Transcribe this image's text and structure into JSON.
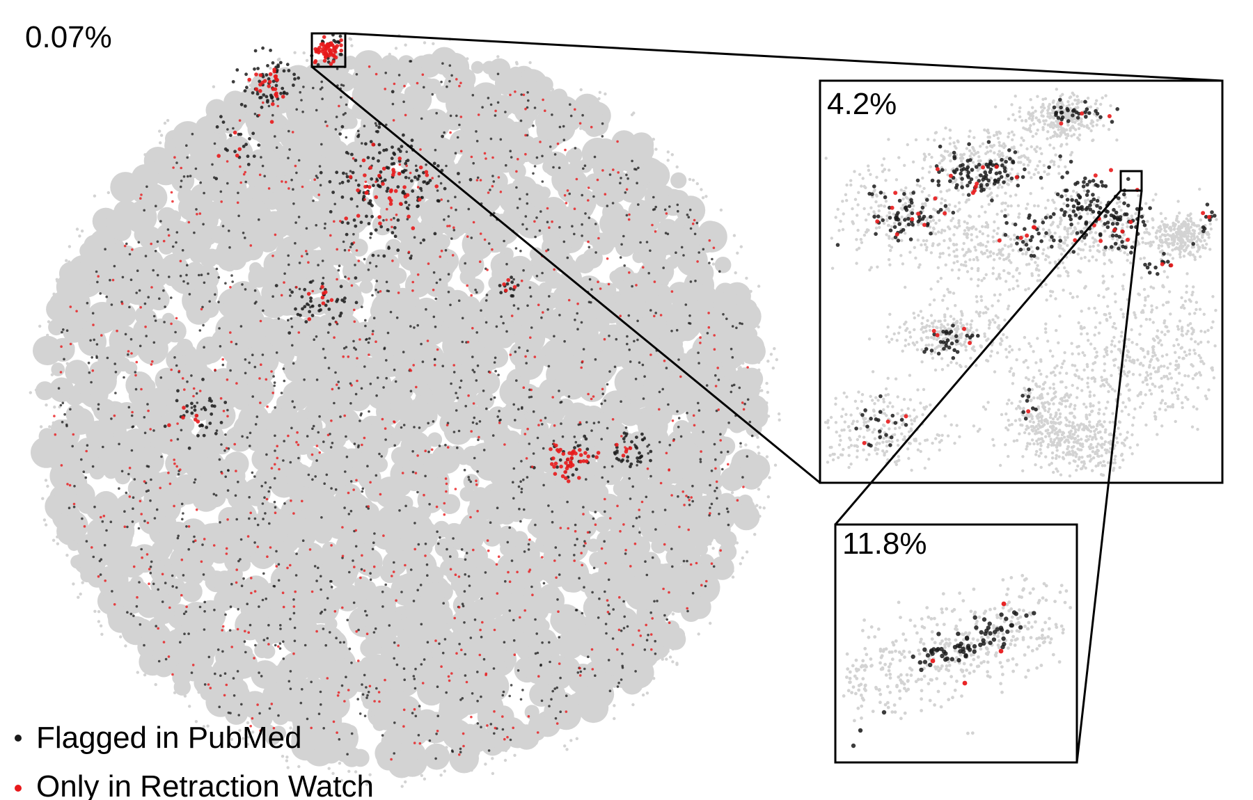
{
  "chart_data": {
    "type": "scatter",
    "description_free": true,
    "colors": {
      "background_points": "#d3d3d3",
      "flagged_in_pubmed": "#1a1a1a",
      "only_in_retraction_watch": "#e8191b"
    },
    "legend": {
      "placement": "bottom-left",
      "entries": [
        {
          "label": "Flagged in PubMed",
          "color": "#1a1a1a"
        },
        {
          "label": "Only in Retraction Watch",
          "color": "#e8191b"
        }
      ]
    },
    "panels": [
      {
        "id": "main",
        "percentage_label": "0.07%"
      },
      {
        "id": "zoom1",
        "percentage_label": "4.2%"
      },
      {
        "id": "zoom2",
        "percentage_label": "11.8%"
      }
    ]
  }
}
